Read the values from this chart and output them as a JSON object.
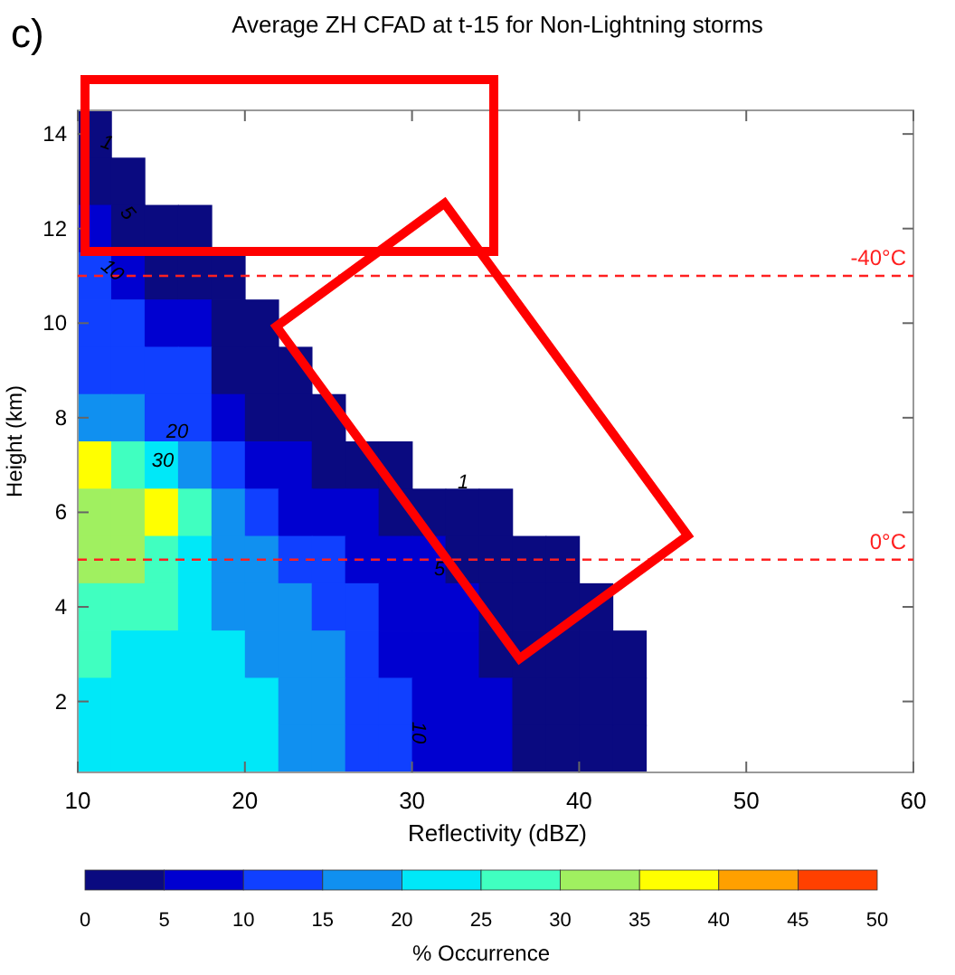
{
  "chart_data": {
    "type": "heatmap",
    "title": "Average ZH CFAD at t-15 for Non-Lightning storms",
    "xlabel": "Reflectivity (dBZ)",
    "ylabel": "Height (km)",
    "clabel": "% Occurrence",
    "x": [
      11,
      13,
      15,
      17,
      19,
      21,
      23,
      25,
      27,
      29,
      31,
      33,
      35,
      37,
      39,
      41,
      43
    ],
    "xlim": [
      10,
      60
    ],
    "xticks": [
      10,
      20,
      30,
      40,
      50,
      60
    ],
    "ylim": [
      0.5,
      14.5
    ],
    "yticks": [
      2,
      4,
      6,
      8,
      10,
      12,
      14
    ],
    "clim": [
      0,
      50
    ],
    "cticks": [
      0,
      5,
      10,
      15,
      20,
      25,
      30,
      35,
      40,
      45,
      50
    ],
    "colors": [
      "#0a0a80",
      "#0000d0",
      "#1040ff",
      "#1090f0",
      "#00e8f8",
      "#40ffc0",
      "#a0f060",
      "#ffff00",
      "#ffa000",
      "#ff4000"
    ],
    "cells": [
      [
        2.5,
        null,
        null,
        null,
        null,
        null,
        null,
        null,
        null,
        null,
        null,
        null,
        null,
        null,
        null,
        null,
        null
      ],
      [
        2.5,
        2.5,
        null,
        null,
        null,
        null,
        null,
        null,
        null,
        null,
        null,
        null,
        null,
        null,
        null,
        null,
        null
      ],
      [
        7.5,
        2.5,
        2.5,
        2.5,
        null,
        null,
        null,
        null,
        null,
        null,
        null,
        null,
        null,
        null,
        null,
        null,
        null
      ],
      [
        12.5,
        7.5,
        2.5,
        2.5,
        2.5,
        null,
        null,
        null,
        null,
        null,
        null,
        null,
        null,
        null,
        null,
        null,
        null
      ],
      [
        12.5,
        12.5,
        7.5,
        7.5,
        2.5,
        2.5,
        null,
        null,
        null,
        null,
        null,
        null,
        null,
        null,
        null,
        null,
        null
      ],
      [
        12.5,
        12.5,
        12.5,
        12.5,
        2.5,
        2.5,
        2.5,
        null,
        null,
        null,
        null,
        null,
        null,
        null,
        null,
        null,
        null
      ],
      [
        17.5,
        17.5,
        12.5,
        12.5,
        7.5,
        2.5,
        2.5,
        2.5,
        null,
        null,
        null,
        null,
        null,
        null,
        null,
        null,
        null
      ],
      [
        37.5,
        27.5,
        22.5,
        17.5,
        12.5,
        7.5,
        7.5,
        2.5,
        2.5,
        2.5,
        null,
        null,
        null,
        null,
        null,
        null,
        null
      ],
      [
        32.5,
        32.5,
        37.5,
        27.5,
        17.5,
        12.5,
        7.5,
        7.5,
        7.5,
        2.5,
        2.5,
        2.5,
        2.5,
        null,
        null,
        null,
        null
      ],
      [
        32.5,
        32.5,
        27.5,
        22.5,
        17.5,
        17.5,
        12.5,
        12.5,
        7.5,
        7.5,
        7.5,
        2.5,
        2.5,
        2.5,
        2.5,
        null,
        null
      ],
      [
        27.5,
        27.5,
        27.5,
        22.5,
        17.5,
        17.5,
        17.5,
        12.5,
        12.5,
        7.5,
        7.5,
        7.5,
        2.5,
        2.5,
        2.5,
        2.5,
        null
      ],
      [
        27.5,
        22.5,
        22.5,
        22.5,
        22.5,
        17.5,
        17.5,
        17.5,
        12.5,
        7.5,
        7.5,
        7.5,
        2.5,
        2.5,
        2.5,
        2.5,
        2.5
      ],
      [
        22.5,
        22.5,
        22.5,
        22.5,
        22.5,
        22.5,
        17.5,
        17.5,
        12.5,
        12.5,
        7.5,
        7.5,
        7.5,
        2.5,
        2.5,
        2.5,
        2.5
      ],
      [
        22.5,
        22.5,
        22.5,
        22.5,
        22.5,
        22.5,
        17.5,
        17.5,
        12.5,
        12.5,
        7.5,
        7.5,
        7.5,
        2.5,
        2.5,
        2.5,
        2.5
      ]
    ],
    "ref_lines": [
      {
        "axis": "y",
        "value": 11,
        "label": "-40°C",
        "color": "#ff2020",
        "line_style": "dashed"
      },
      {
        "axis": "y",
        "value": 5,
        "label": "0°C",
        "color": "#ff2020",
        "line_style": "dashed"
      }
    ],
    "annotations": [
      "c)",
      "1",
      "5",
      "10",
      "20",
      "30",
      "1",
      "5",
      "10"
    ]
  }
}
